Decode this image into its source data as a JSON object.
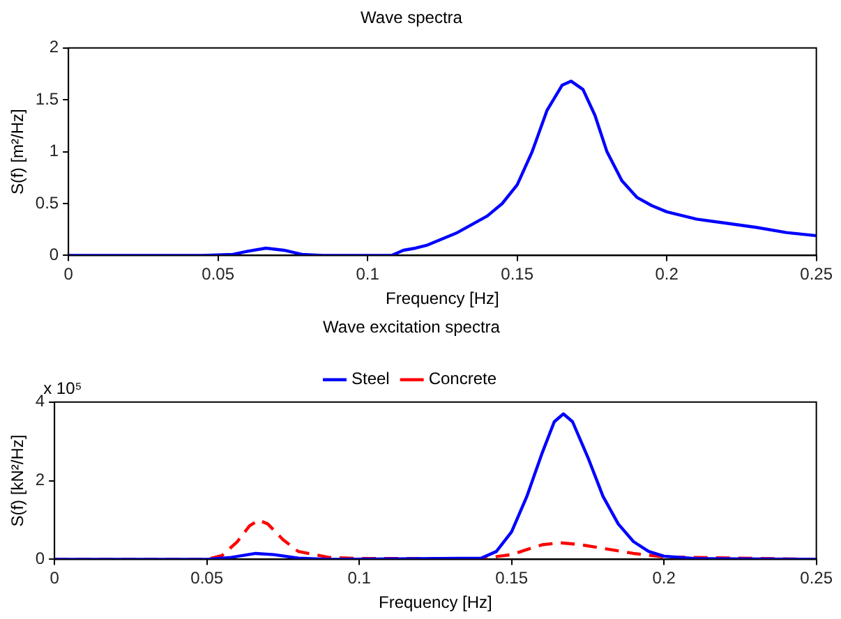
{
  "chart_data": [
    {
      "type": "line",
      "title": "Wave spectra",
      "xlabel": "Frequency [Hz]",
      "ylabel": "S(f) [m²/Hz]",
      "xlim": [
        0,
        0.25
      ],
      "ylim": [
        0,
        2
      ],
      "xticks": [
        0,
        0.05,
        0.1,
        0.15,
        0.2,
        0.25
      ],
      "yticks": [
        0,
        0.5,
        1,
        1.5,
        2
      ],
      "grid": false,
      "legend": false,
      "marker": "none",
      "series": [
        {
          "color": "#0000ff",
          "line_style": "solid",
          "x": [
            0,
            0.045,
            0.055,
            0.06,
            0.066,
            0.072,
            0.078,
            0.085,
            0.108,
            0.112,
            0.116,
            0.12,
            0.13,
            0.14,
            0.145,
            0.15,
            0.155,
            0.16,
            0.165,
            0.168,
            0.172,
            0.176,
            0.18,
            0.185,
            0.19,
            0.195,
            0.2,
            0.21,
            0.22,
            0.23,
            0.24,
            0.25
          ],
          "values": [
            0,
            0,
            0.01,
            0.04,
            0.07,
            0.05,
            0.01,
            0,
            0,
            0.05,
            0.07,
            0.1,
            0.22,
            0.38,
            0.5,
            0.68,
            1.0,
            1.4,
            1.64,
            1.68,
            1.6,
            1.35,
            1.0,
            0.72,
            0.56,
            0.48,
            0.42,
            0.35,
            0.31,
            0.27,
            0.22,
            0.19
          ]
        }
      ]
    },
    {
      "type": "line",
      "title": "Wave excitation spectra",
      "xlabel": "Frequency [Hz]",
      "ylabel": "S(f) [kN²/Hz]",
      "annotations": [
        "x 10⁵"
      ],
      "xlim": [
        0,
        0.25
      ],
      "ylim": [
        0,
        4
      ],
      "xticks": [
        0,
        0.05,
        0.1,
        0.15,
        0.2,
        0.25
      ],
      "yticks": [
        0,
        2,
        4
      ],
      "grid": false,
      "legend": "top",
      "marker": "none",
      "series": [
        {
          "name": "Steel",
          "color": "#0000ff",
          "line_style": "solid",
          "x": [
            0,
            0.05,
            0.058,
            0.066,
            0.072,
            0.08,
            0.09,
            0.14,
            0.145,
            0.15,
            0.155,
            0.16,
            0.164,
            0.167,
            0.17,
            0.175,
            0.18,
            0.185,
            0.19,
            0.195,
            0.2,
            0.21,
            0.25
          ],
          "values": [
            0,
            0,
            0.05,
            0.15,
            0.12,
            0.03,
            0,
            0.03,
            0.2,
            0.7,
            1.6,
            2.7,
            3.5,
            3.7,
            3.5,
            2.6,
            1.6,
            0.9,
            0.45,
            0.2,
            0.08,
            0.02,
            0
          ]
        },
        {
          "name": "Concrete",
          "color": "#ff0000",
          "line_style": "dashed",
          "x": [
            0,
            0.05,
            0.055,
            0.06,
            0.064,
            0.067,
            0.07,
            0.075,
            0.08,
            0.09,
            0.1,
            0.14,
            0.15,
            0.155,
            0.16,
            0.166,
            0.172,
            0.18,
            0.19,
            0.2,
            0.25
          ],
          "values": [
            0,
            0,
            0.1,
            0.45,
            0.85,
            1.0,
            0.9,
            0.5,
            0.2,
            0.05,
            0.02,
            0.02,
            0.12,
            0.25,
            0.37,
            0.42,
            0.38,
            0.28,
            0.15,
            0.06,
            0
          ]
        }
      ]
    }
  ]
}
